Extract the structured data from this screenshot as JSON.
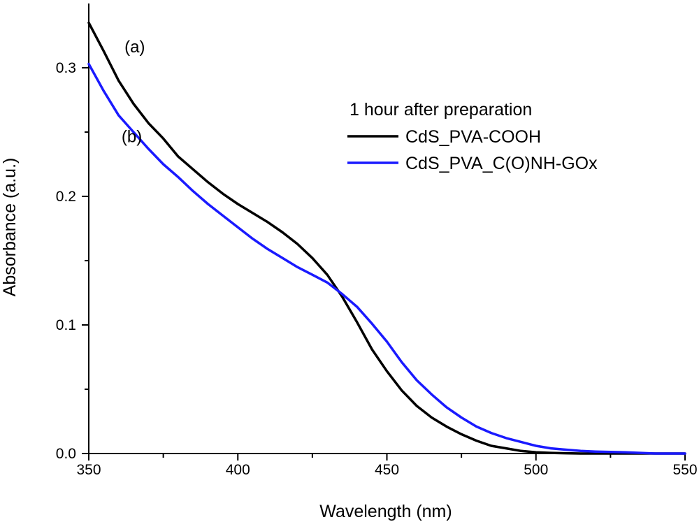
{
  "chart_data": {
    "type": "line",
    "title": "",
    "xlabel": "Wavelength (nm)",
    "ylabel": "Absorbance (a.u.)",
    "xlim": [
      350,
      550
    ],
    "ylim": [
      0.0,
      0.35
    ],
    "x_ticks": [
      350,
      400,
      450,
      500,
      550
    ],
    "x_tick_labels": [
      "350",
      "400",
      "450",
      "500",
      "550"
    ],
    "y_ticks": [
      0.0,
      0.1,
      0.2,
      0.3
    ],
    "y_tick_labels": [
      "0.0",
      "0.1",
      "0.2",
      "0.3"
    ],
    "grid": false,
    "legend": {
      "placement": "top-right",
      "title": "1 hour after preparation"
    },
    "annotations": [
      {
        "text": "(a)",
        "x": 362,
        "y": 0.312
      },
      {
        "text": "(b)",
        "x": 361,
        "y": 0.242
      }
    ],
    "series": [
      {
        "name": "CdS_PVA-COOH",
        "color": "#000000",
        "x": [
          350,
          355,
          360,
          365,
          370,
          375,
          380,
          385,
          390,
          395,
          400,
          405,
          410,
          415,
          420,
          425,
          430,
          435,
          440,
          445,
          450,
          455,
          460,
          465,
          470,
          475,
          480,
          485,
          490,
          495,
          500,
          505,
          510,
          515,
          520,
          530,
          540,
          550
        ],
        "y": [
          0.335,
          0.313,
          0.29,
          0.272,
          0.257,
          0.245,
          0.231,
          0.221,
          0.211,
          0.202,
          0.194,
          0.187,
          0.18,
          0.172,
          0.163,
          0.152,
          0.139,
          0.122,
          0.102,
          0.081,
          0.064,
          0.049,
          0.037,
          0.028,
          0.021,
          0.015,
          0.01,
          0.006,
          0.004,
          0.002,
          0.001,
          0.0005,
          0.0002,
          0.0,
          0.0,
          0.0,
          0.0,
          0.0
        ]
      },
      {
        "name": "CdS_PVA_C(O)NH-GOx",
        "color": "#1a1aff",
        "x": [
          350,
          355,
          360,
          365,
          370,
          375,
          380,
          385,
          390,
          395,
          400,
          405,
          410,
          415,
          420,
          425,
          430,
          435,
          440,
          445,
          450,
          455,
          460,
          465,
          470,
          475,
          480,
          485,
          490,
          495,
          500,
          505,
          510,
          515,
          520,
          530,
          540,
          550
        ],
        "y": [
          0.303,
          0.282,
          0.263,
          0.25,
          0.237,
          0.225,
          0.215,
          0.204,
          0.194,
          0.185,
          0.176,
          0.167,
          0.159,
          0.152,
          0.145,
          0.139,
          0.133,
          0.124,
          0.114,
          0.101,
          0.087,
          0.071,
          0.057,
          0.046,
          0.036,
          0.028,
          0.021,
          0.016,
          0.012,
          0.009,
          0.006,
          0.004,
          0.003,
          0.002,
          0.0015,
          0.001,
          0.0,
          0.0
        ]
      }
    ]
  }
}
